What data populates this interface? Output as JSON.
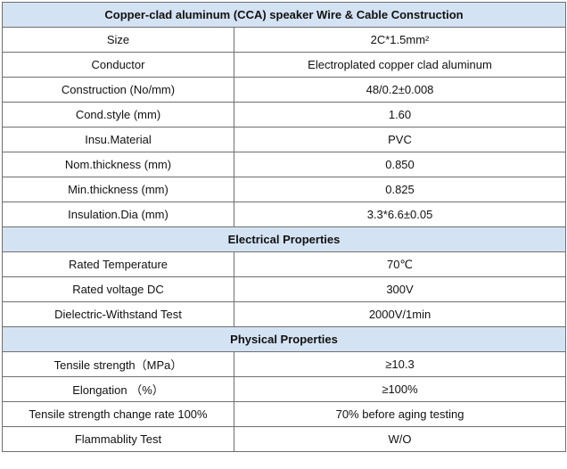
{
  "sections": [
    {
      "title": "Copper-clad aluminum (CCA) speaker Wire & Cable Construction",
      "rows": [
        {
          "label": "Size",
          "value": "2C*1.5mm²"
        },
        {
          "label": "Conductor",
          "value": "Electroplated copper clad aluminum"
        },
        {
          "label": "Construction (No/mm)",
          "value": "48/0.2±0.008"
        },
        {
          "label": "Cond.style (mm)",
          "value": "1.60"
        },
        {
          "label": "Insu.Material",
          "value": "PVC"
        },
        {
          "label": "Nom.thickness (mm)",
          "value": "0.850"
        },
        {
          "label": "Min.thickness (mm)",
          "value": "0.825"
        },
        {
          "label": "Insulation.Dia (mm)",
          "value": "3.3*6.6±0.05"
        }
      ]
    },
    {
      "title": "Electrical Properties",
      "rows": [
        {
          "label": "Rated Temperature",
          "value": "70℃"
        },
        {
          "label": "Rated voltage DC",
          "value": "300V"
        },
        {
          "label": "Dielectric-Withstand Test",
          "value": "2000V/1min"
        }
      ]
    },
    {
      "title": "Physical Properties",
      "rows": [
        {
          "label": "Tensile strength（MPa）",
          "value": "≥10.3"
        },
        {
          "label": "Elongation （%）",
          "value": "≥100%"
        },
        {
          "label": "Tensile strength change rate 100%",
          "value": "70% before aging testing"
        },
        {
          "label": "Flammablity Test",
          "value": "W/O"
        }
      ]
    }
  ]
}
